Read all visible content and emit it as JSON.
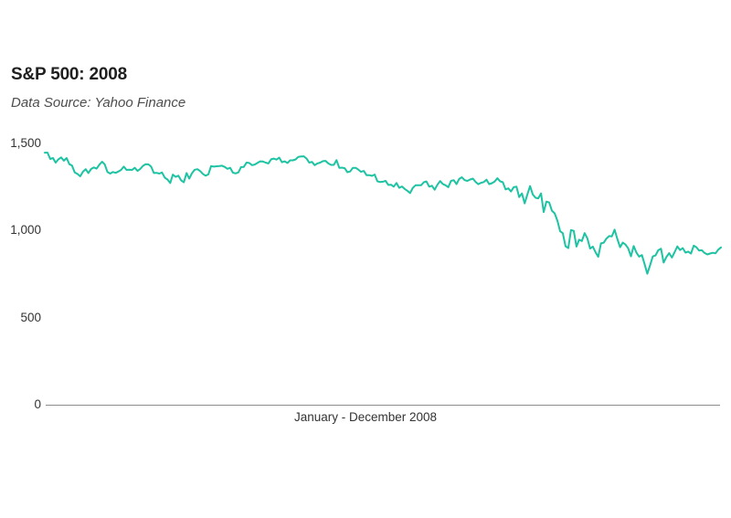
{
  "page": {
    "title": "S&P 500: 2008",
    "subtitle": "Data Source: Yahoo Finance"
  },
  "chart_data": {
    "type": "line",
    "title": "S&P 500: 2008",
    "source": "Data Source: Yahoo Finance",
    "xlabel": "January - December 2008",
    "ylabel": "",
    "ylim": [
      0,
      1500
    ],
    "grid": false,
    "legend": "none",
    "line_color": "#1dc3a2",
    "axis_color": "#8c8c8c",
    "y_ticks": [
      {
        "value": 0,
        "label": "0"
      },
      {
        "value": 500,
        "label": "500"
      },
      {
        "value": 1000,
        "label": "1,000"
      },
      {
        "value": 1500,
        "label": "1,500"
      }
    ],
    "series": [
      {
        "name": "S&P 500",
        "values": [
          1447,
          1447,
          1411,
          1416,
          1390,
          1409,
          1420,
          1401,
          1416,
          1381,
          1373,
          1333,
          1325,
          1311,
          1338,
          1352,
          1330,
          1353,
          1362,
          1355,
          1378,
          1395,
          1380,
          1336,
          1327,
          1336,
          1331,
          1339,
          1348,
          1367,
          1348,
          1349,
          1348,
          1360,
          1342,
          1353,
          1371,
          1381,
          1380,
          1367,
          1330,
          1331,
          1327,
          1333,
          1304,
          1293,
          1273,
          1321,
          1308,
          1315,
          1288,
          1277,
          1330,
          1298,
          1329,
          1349,
          1352,
          1341,
          1325,
          1315,
          1322,
          1370,
          1367,
          1369,
          1370,
          1372,
          1365,
          1354,
          1360,
          1332,
          1328,
          1334,
          1364,
          1365,
          1390,
          1388,
          1375,
          1379,
          1388,
          1397,
          1396,
          1390,
          1385,
          1409,
          1413,
          1407,
          1418,
          1392,
          1397,
          1388,
          1403,
          1403,
          1408,
          1423,
          1425,
          1426,
          1413,
          1390,
          1394,
          1375,
          1385,
          1390,
          1398,
          1400,
          1385,
          1377,
          1377,
          1404,
          1360,
          1361,
          1358,
          1335,
          1339,
          1360,
          1360,
          1350,
          1337,
          1342,
          1318,
          1318,
          1314,
          1321,
          1283,
          1278,
          1280,
          1285,
          1262,
          1263,
          1252,
          1273,
          1245,
          1253,
          1239,
          1228,
          1215,
          1245,
          1260,
          1260,
          1260,
          1277,
          1282,
          1252,
          1257,
          1234,
          1263,
          1284,
          1267,
          1260,
          1249,
          1285,
          1289,
          1266,
          1296,
          1306,
          1289,
          1285,
          1293,
          1298,
          1279,
          1266,
          1274,
          1278,
          1292,
          1266,
          1272,
          1281,
          1300,
          1283,
          1277,
          1236,
          1242,
          1224,
          1249,
          1252,
          1192,
          1213,
          1156,
          1206,
          1255,
          1207,
          1188,
          1185,
          1213,
          1106,
          1166,
          1161,
          1114,
          1099,
          1057,
          996,
          985,
          910,
          899,
          1003,
          998,
          908,
          947,
          940,
          985,
          955,
          897,
          908,
          876,
          849,
          926,
          930,
          954,
          968,
          966,
          1005,
          952,
          904,
          931,
          919,
          898,
          852,
          911,
          873,
          850,
          859,
          806,
          752,
          800,
          851,
          857,
          887,
          896,
          816,
          848,
          870,
          845,
          876,
          909,
          888,
          899,
          873,
          879,
          868,
          913,
          904,
          885,
          887,
          871,
          863,
          868,
          872,
          869,
          890,
          903
        ]
      }
    ]
  },
  "colors": {
    "background": "#ffffff",
    "title": "#1f1f1f",
    "subtitle": "#4d4d4d",
    "tick": "#333333",
    "axis": "#8c8c8c",
    "line": "#1dc3a2"
  }
}
